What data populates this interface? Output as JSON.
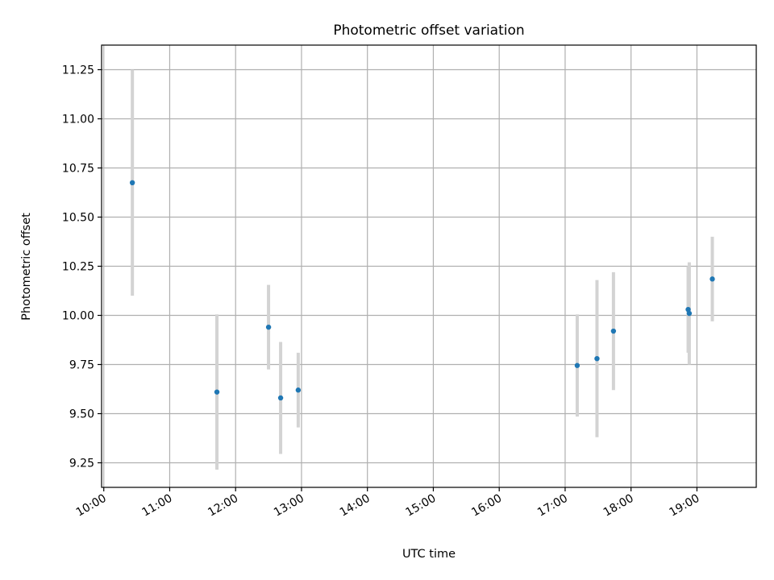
{
  "chart_data": {
    "type": "scatter",
    "title": "Photometric offset variation",
    "xlabel": "UTC time",
    "ylabel": "Photometric offset",
    "x_axis_type": "time",
    "xlim": [
      "09:58",
      "19:54"
    ],
    "ylim": [
      9.125,
      11.375
    ],
    "xticks": [
      "10:00",
      "11:00",
      "12:00",
      "13:00",
      "14:00",
      "15:00",
      "16:00",
      "17:00",
      "18:00",
      "19:00"
    ],
    "yticks": [
      "9.25",
      "9.50",
      "9.75",
      "10.00",
      "10.25",
      "10.50",
      "10.75",
      "11.00",
      "11.25"
    ],
    "grid": true,
    "point_color": "#1f77b4",
    "errorbar_color": "#d3d3d3",
    "series": [
      {
        "points": [
          {
            "x": "10:26",
            "y": 10.675,
            "err": 0.575
          },
          {
            "x": "11:43",
            "y": 9.61,
            "err": 0.395
          },
          {
            "x": "12:30",
            "y": 9.94,
            "err": 0.215
          },
          {
            "x": "12:41",
            "y": 9.58,
            "err": 0.285
          },
          {
            "x": "12:57",
            "y": 9.62,
            "err": 0.19
          },
          {
            "x": "17:11",
            "y": 9.745,
            "err": 0.26
          },
          {
            "x": "17:29",
            "y": 9.78,
            "err": 0.4
          },
          {
            "x": "17:44",
            "y": 9.92,
            "err": 0.3
          },
          {
            "x": "18:52",
            "y": 10.03,
            "err": 0.22
          },
          {
            "x": "18:53",
            "y": 10.01,
            "err": 0.26
          },
          {
            "x": "19:14",
            "y": 10.185,
            "err": 0.215
          }
        ]
      }
    ]
  }
}
